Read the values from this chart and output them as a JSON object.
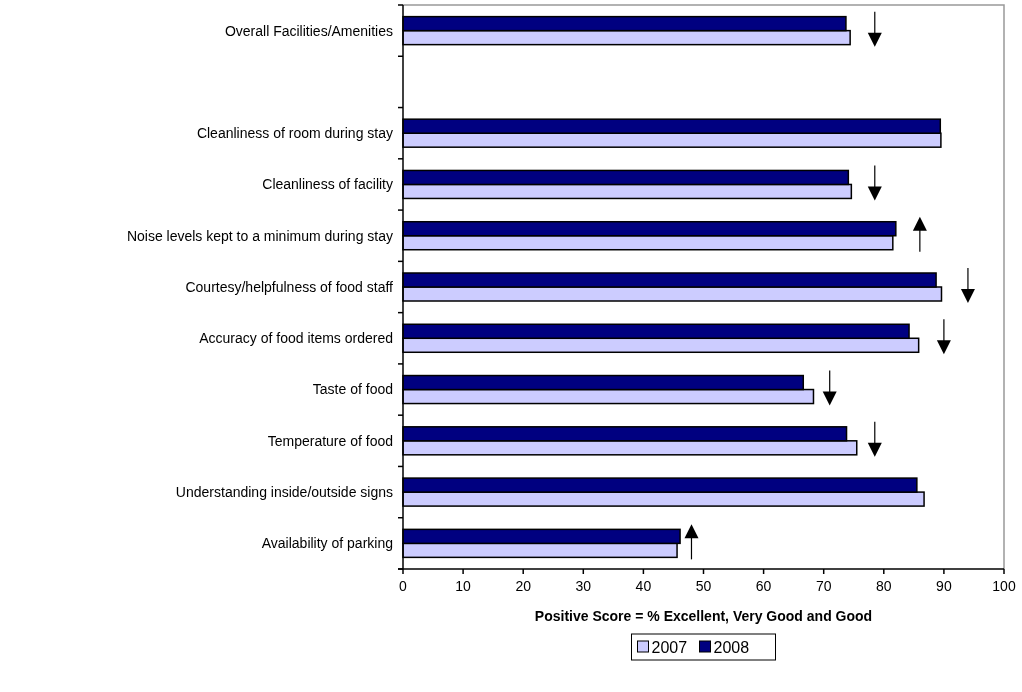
{
  "chart_data": {
    "type": "bar",
    "orientation": "horizontal",
    "xlabel": "Positive Score = % Excellent, Very Good and Good",
    "categories": [
      "Overall Facilities/Amenities",
      null,
      "Cleanliness of room during stay",
      "Cleanliness of facility",
      "Noise levels kept to a minimum during stay",
      "Courtesy/helpfulness of food staff",
      "Accuracy of food items ordered",
      "Taste of food",
      "Temperature of food",
      "Understanding inside/outside signs",
      "Availability of parking"
    ],
    "series": [
      {
        "name": "2007",
        "color": "#ccccff",
        "values": [
          74.4,
          null,
          89.5,
          74.6,
          81.5,
          89.6,
          85.8,
          68.3,
          75.5,
          86.7,
          45.6
        ]
      },
      {
        "name": "2008",
        "color": "#000080",
        "values": [
          73.7,
          null,
          89.4,
          74.1,
          82.0,
          88.7,
          84.2,
          66.6,
          73.8,
          85.5,
          46.1
        ]
      }
    ],
    "xlim": [
      0,
      100
    ],
    "xticks": [
      0,
      10,
      20,
      30,
      40,
      50,
      60,
      70,
      80,
      90,
      100
    ],
    "legend": "bottom",
    "grid": false
  }
}
